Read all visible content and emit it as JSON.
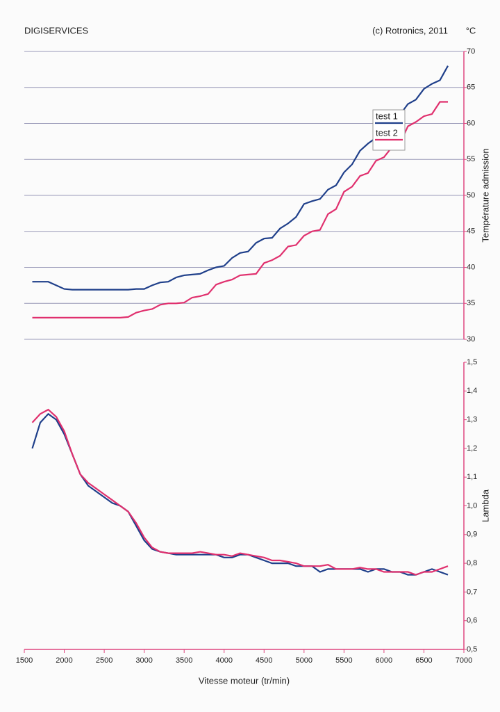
{
  "header": {
    "left": "DIGISERVICES",
    "right": "(c) Rotronics, 2011"
  },
  "chart_data": [
    {
      "type": "line",
      "ylabel": "Température admission",
      "y_unit": "°C",
      "x": [
        1600,
        1700,
        1800,
        1900,
        2000,
        2100,
        2200,
        2300,
        2400,
        2500,
        2600,
        2700,
        2800,
        2900,
        3000,
        3100,
        3200,
        3300,
        3400,
        3500,
        3600,
        3700,
        3800,
        3900,
        4000,
        4100,
        4200,
        4300,
        4400,
        4500,
        4600,
        4700,
        4800,
        4900,
        5000,
        5100,
        5200,
        5300,
        5400,
        5500,
        5600,
        5700,
        5800,
        5900,
        6000,
        6100,
        6200,
        6300,
        6400,
        6500,
        6600,
        6700,
        6800
      ],
      "xlim": [
        1500,
        7000
      ],
      "ylim": [
        30,
        70
      ],
      "yticks": [
        30,
        35,
        40,
        45,
        50,
        55,
        60,
        65,
        70
      ],
      "grid": true,
      "legend": "center right",
      "series": [
        {
          "name": "test 1",
          "color": "#1f3f8a",
          "values": [
            38,
            38,
            38,
            37.5,
            37,
            36.9,
            36.9,
            36.9,
            36.9,
            36.9,
            36.9,
            36.9,
            36.9,
            37,
            37,
            37.5,
            37.9,
            38,
            38.6,
            38.9,
            39,
            39.1,
            39.6,
            40,
            40.2,
            41.3,
            42,
            42.2,
            43.4,
            44,
            44.1,
            45.4,
            46.1,
            47,
            48.8,
            49.2,
            49.5,
            50.8,
            51.4,
            53.2,
            54.3,
            56.2,
            57.2,
            58,
            59.5,
            60.5,
            61.2,
            62.7,
            63.3,
            64.8,
            65.5,
            66,
            68
          ]
        },
        {
          "name": "test 2",
          "color": "#e0306e",
          "values": [
            33,
            33,
            33,
            33,
            33,
            33,
            33,
            33,
            33,
            33,
            33,
            33,
            33.1,
            33.7,
            34,
            34.2,
            34.8,
            35,
            35,
            35.1,
            35.8,
            36,
            36.3,
            37.6,
            38,
            38.3,
            38.9,
            39,
            39.1,
            40.6,
            41,
            41.6,
            42.9,
            43.1,
            44.4,
            45,
            45.2,
            47.4,
            48.1,
            50.5,
            51.2,
            52.7,
            53.1,
            54.8,
            55.3,
            56.7,
            57.2,
            59.6,
            60.2,
            61,
            61.3,
            63,
            63
          ]
        }
      ]
    },
    {
      "type": "line",
      "xlabel": "Vitesse moteur (tr/min)",
      "ylabel": "Lambda",
      "x": [
        1600,
        1700,
        1800,
        1900,
        2000,
        2100,
        2200,
        2300,
        2400,
        2500,
        2600,
        2700,
        2800,
        2900,
        3000,
        3100,
        3200,
        3300,
        3400,
        3500,
        3600,
        3700,
        3800,
        3900,
        4000,
        4100,
        4200,
        4300,
        4400,
        4500,
        4600,
        4700,
        4800,
        4900,
        5000,
        5100,
        5200,
        5300,
        5400,
        5500,
        5600,
        5700,
        5800,
        5900,
        6000,
        6100,
        6200,
        6300,
        6400,
        6500,
        6600,
        6700,
        6800
      ],
      "xlim": [
        1500,
        7000
      ],
      "xticks": [
        1500,
        2000,
        2500,
        3000,
        3500,
        4000,
        4500,
        5000,
        5500,
        6000,
        6500,
        7000
      ],
      "ylim": [
        0.5,
        1.5
      ],
      "yticks": [
        {
          "value": 0.5,
          "label": "0,5"
        },
        {
          "value": 0.6,
          "label": "0,6"
        },
        {
          "value": 0.7,
          "label": "0,7"
        },
        {
          "value": 0.8,
          "label": "0,8"
        },
        {
          "value": 0.9,
          "label": "0,9"
        },
        {
          "value": 1.0,
          "label": "1,0"
        },
        {
          "value": 1.1,
          "label": "1,1"
        },
        {
          "value": 1.2,
          "label": "1,2"
        },
        {
          "value": 1.3,
          "label": "1,3"
        },
        {
          "value": 1.4,
          "label": "1,4"
        },
        {
          "value": 1.5,
          "label": "1,5"
        }
      ],
      "grid": false,
      "series": [
        {
          "color": "#1f3f8a",
          "values": [
            1.2,
            1.29,
            1.32,
            1.3,
            1.25,
            1.18,
            1.11,
            1.07,
            1.05,
            1.03,
            1.01,
            1.0,
            0.98,
            0.93,
            0.88,
            0.85,
            0.84,
            0.835,
            0.83,
            0.83,
            0.83,
            0.83,
            0.83,
            0.83,
            0.82,
            0.82,
            0.83,
            0.83,
            0.82,
            0.81,
            0.8,
            0.8,
            0.8,
            0.79,
            0.79,
            0.79,
            0.77,
            0.78,
            0.78,
            0.78,
            0.78,
            0.78,
            0.77,
            0.78,
            0.78,
            0.77,
            0.77,
            0.76,
            0.76,
            0.77,
            0.78,
            0.77,
            0.76
          ]
        },
        {
          "color": "#e0306e",
          "values": [
            1.29,
            1.32,
            1.335,
            1.31,
            1.26,
            1.18,
            1.11,
            1.08,
            1.06,
            1.04,
            1.02,
            1.0,
            0.98,
            0.94,
            0.89,
            0.855,
            0.84,
            0.835,
            0.835,
            0.835,
            0.835,
            0.84,
            0.835,
            0.83,
            0.83,
            0.825,
            0.835,
            0.83,
            0.825,
            0.82,
            0.81,
            0.81,
            0.805,
            0.8,
            0.79,
            0.79,
            0.79,
            0.795,
            0.78,
            0.78,
            0.78,
            0.785,
            0.78,
            0.78,
            0.77,
            0.77,
            0.77,
            0.77,
            0.76,
            0.77,
            0.77,
            0.78,
            0.79
          ]
        }
      ]
    }
  ]
}
